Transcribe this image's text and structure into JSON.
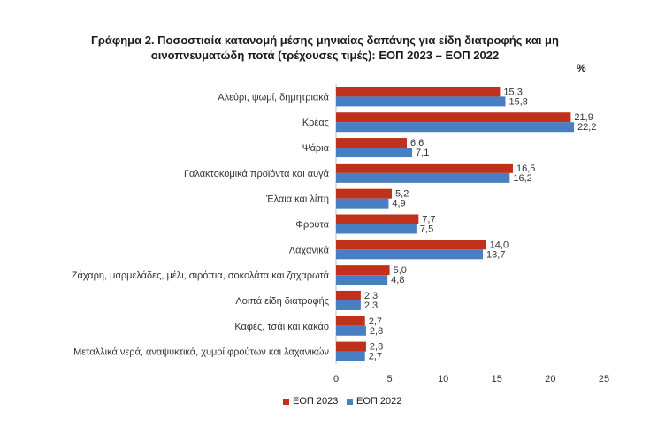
{
  "chart_data": {
    "type": "bar",
    "orientation": "horizontal",
    "title_line1": "Γράφημα 2.  Ποσοστιαία κατανομή μέσης μηνιαίας δαπάνης για είδη διατροφής και μη",
    "title_line2": "οινοπνευματώδη ποτά (τρέχουσες τιμές): ΕΟΠ 2023 – ΕΟΠ 2022",
    "unit": "%",
    "categories": [
      "Αλεύρι, ψωμί, δημητριακά",
      "Κρέας",
      "Ψάρια",
      "Γαλακτοκομικά προϊόντα και αυγά",
      "Έλαια και λίπη",
      "Φρούτα",
      "Λαχανικά",
      "Ζάχαρη, μαρμελάδες, μέλι, σιρόπια, σοκολάτα και ζαχαρωτά",
      "Λοιπά είδη διατροφής",
      "Καφές, τσάι και κακάο",
      "Μεταλλικά νερά, αναψυκτικά, χυμοί φρούτων και λαχανικών"
    ],
    "series": [
      {
        "name": "ΕΟΠ 2023",
        "color": "#c0311c",
        "values": [
          15.3,
          21.9,
          6.6,
          16.5,
          5.2,
          7.7,
          14.0,
          5.0,
          2.3,
          2.7,
          2.8
        ],
        "labels": [
          "15,3",
          "21,9",
          "6,6",
          "16,5",
          "5,2",
          "7,7",
          "14,0",
          "5,0",
          "2,3",
          "2,7",
          "2,8"
        ]
      },
      {
        "name": "ΕΟΠ 2022",
        "color": "#4a7ec3",
        "values": [
          15.8,
          22.2,
          7.1,
          16.2,
          4.9,
          7.5,
          13.7,
          4.8,
          2.3,
          2.8,
          2.7
        ],
        "labels": [
          "15,8",
          "22,2",
          "7,1",
          "16,2",
          "4,9",
          "7,5",
          "13,7",
          "4,8",
          "2,3",
          "2,8",
          "2,7"
        ]
      }
    ],
    "xlim": [
      0,
      25
    ],
    "xticks": [
      0,
      5,
      10,
      15,
      20,
      25
    ],
    "grid": false,
    "legend_position": "bottom"
  }
}
